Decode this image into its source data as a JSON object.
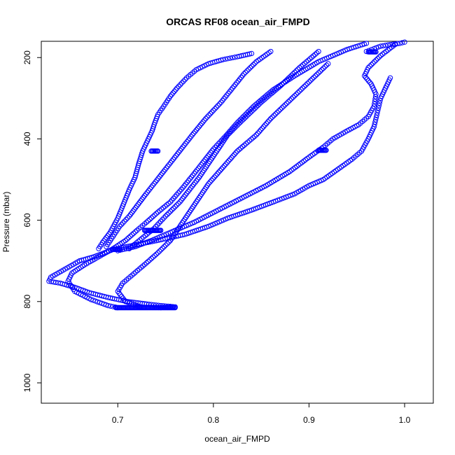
{
  "chart_data": {
    "type": "scatter",
    "title": "ORCAS RF08 ocean_air_FMPD",
    "xlabel": "ocean_air_FMPD",
    "ylabel": "Pressure (mbar)",
    "xlim": [
      0.62,
      1.03
    ],
    "ylim": [
      1050,
      160
    ],
    "y_reversed": true,
    "x_ticks": [
      0.7,
      0.8,
      0.9,
      1.0
    ],
    "x_tick_labels": [
      "0.7",
      "0.8",
      "0.9",
      "1.0"
    ],
    "y_ticks": [
      200,
      400,
      600,
      800,
      1000
    ],
    "y_tick_labels": [
      "200",
      "400",
      "600",
      "800",
      "1000"
    ],
    "marker": "open-circle",
    "marker_color": "#0000ff",
    "grid": false,
    "legend": "none",
    "series": [
      {
        "x": [
          0.68,
          0.684,
          0.692,
          0.7,
          0.706,
          0.712,
          0.718,
          0.722,
          0.726,
          0.732,
          0.736,
          0.738,
          0.742,
          0.748,
          0.755,
          0.762,
          0.772,
          0.782,
          0.795,
          0.81,
          0.825,
          0.84
        ],
        "y": [
          670,
          655,
          630,
          595,
          560,
          525,
          495,
          460,
          430,
          400,
          380,
          365,
          340,
          320,
          295,
          275,
          250,
          230,
          215,
          205,
          198,
          190
        ]
      },
      {
        "x": [
          0.66,
          0.645,
          0.63,
          0.628,
          0.64,
          0.655,
          0.67,
          0.69,
          0.71,
          0.73,
          0.745,
          0.76,
          0.745,
          0.725,
          0.708,
          0.7,
          0.705,
          0.715,
          0.73,
          0.742,
          0.755,
          0.765,
          0.775,
          0.785,
          0.795,
          0.81,
          0.825,
          0.845,
          0.86,
          0.88,
          0.9,
          0.92
        ],
        "y": [
          700,
          720,
          740,
          750,
          755,
          765,
          778,
          790,
          800,
          806,
          810,
          813,
          815,
          814,
          800,
          775,
          755,
          735,
          705,
          680,
          650,
          615,
          580,
          545,
          510,
          470,
          430,
          390,
          350,
          305,
          260,
          215
        ]
      },
      {
        "x": [
          0.7,
          0.69,
          0.672,
          0.655,
          0.648,
          0.652,
          0.665,
          0.68,
          0.695,
          0.708,
          0.72,
          0.73,
          0.742,
          0.755,
          0.768,
          0.78,
          0.79,
          0.8,
          0.812,
          0.825,
          0.842,
          0.862,
          0.885,
          0.91,
          0.94,
          0.96
        ],
        "y": [
          815,
          810,
          795,
          775,
          750,
          730,
          710,
          690,
          670,
          650,
          625,
          605,
          580,
          555,
          520,
          485,
          455,
          425,
          395,
          360,
          320,
          280,
          245,
          210,
          180,
          165
        ]
      },
      {
        "x": [
          0.66,
          0.675,
          0.695,
          0.72,
          0.745,
          0.77,
          0.795,
          0.815,
          0.84,
          0.865,
          0.885,
          0.9,
          0.915,
          0.93,
          0.945,
          0.955,
          0.962,
          0.968,
          0.972,
          0.975,
          0.985
        ],
        "y": [
          700,
          690,
          672,
          660,
          648,
          635,
          615,
          595,
          575,
          553,
          535,
          515,
          500,
          475,
          450,
          430,
          400,
          370,
          330,
          300,
          250
        ]
      },
      {
        "x": [
          0.7,
          0.718,
          0.735,
          0.755,
          0.78,
          0.805,
          0.83,
          0.855,
          0.88,
          0.9,
          0.915,
          0.925,
          0.94,
          0.952,
          0.962,
          0.968,
          0.97,
          0.965,
          0.958,
          0.962,
          0.975,
          0.99
        ],
        "y": [
          675,
          665,
          650,
          630,
          605,
          575,
          545,
          515,
          480,
          445,
          420,
          400,
          380,
          365,
          345,
          320,
          290,
          265,
          245,
          225,
          195,
          168
        ]
      },
      {
        "x": [
          0.712,
          0.725,
          0.738,
          0.75,
          0.765,
          0.775,
          0.785,
          0.795,
          0.805,
          0.815,
          0.83,
          0.85,
          0.87,
          0.89,
          0.91
        ],
        "y": [
          670,
          645,
          620,
          590,
          555,
          525,
          495,
          460,
          425,
          390,
          355,
          310,
          270,
          225,
          185
        ]
      },
      {
        "x": [
          0.688,
          0.695,
          0.702,
          0.712,
          0.72,
          0.728,
          0.738,
          0.748,
          0.758,
          0.768,
          0.778,
          0.792,
          0.808,
          0.82,
          0.832,
          0.845,
          0.86
        ],
        "y": [
          665,
          640,
          615,
          590,
          565,
          540,
          510,
          480,
          450,
          420,
          390,
          350,
          310,
          275,
          240,
          210,
          185
        ]
      },
      {
        "x": [
          0.96,
          0.968,
          0.975,
          0.985,
          0.995,
          1.0
        ],
        "y": [
          185,
          178,
          172,
          168,
          165,
          162
        ]
      }
    ],
    "dense_clusters": [
      {
        "x": [
          0.698,
          0.76
        ],
        "y": 815
      },
      {
        "x": [
          0.728,
          0.745
        ],
        "y": 625
      },
      {
        "x": [
          0.694,
          0.702
        ],
        "y": 672
      },
      {
        "x": [
          0.91,
          0.918
        ],
        "y": 428
      },
      {
        "x": [
          0.735,
          0.742
        ],
        "y": 430
      },
      {
        "x": [
          0.962,
          0.97
        ],
        "y": 186
      }
    ]
  }
}
